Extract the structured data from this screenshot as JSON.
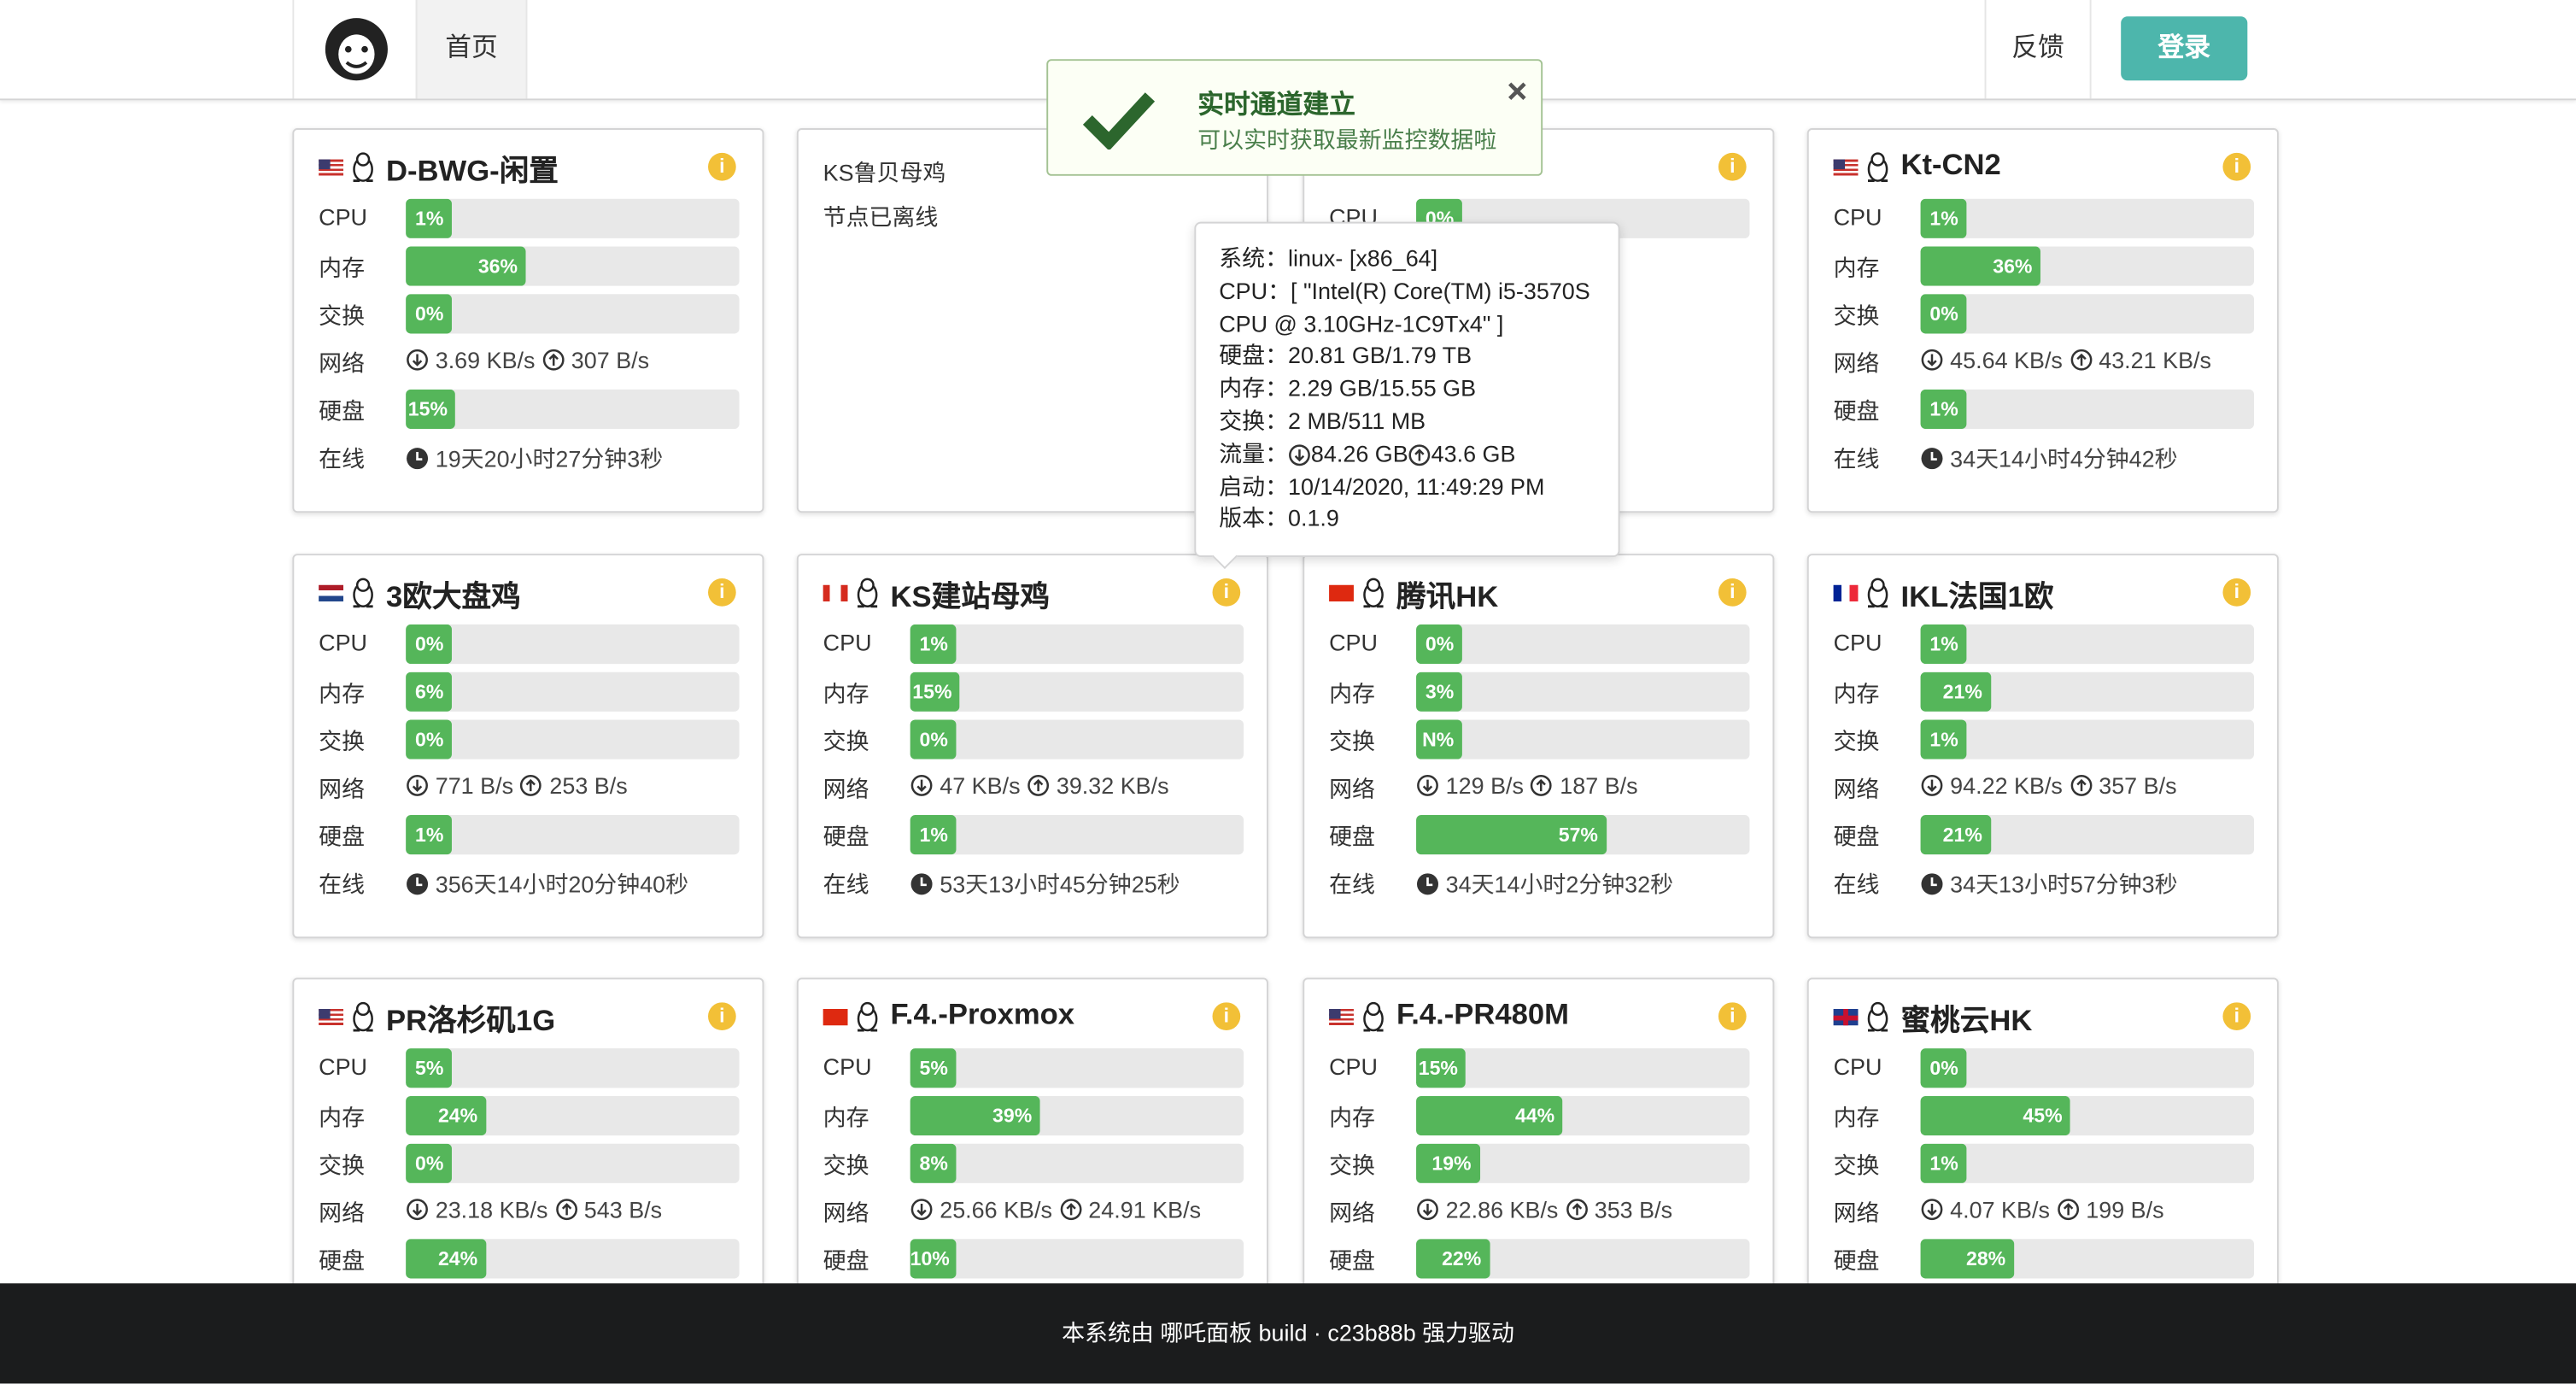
{
  "nav": {
    "home": "首页",
    "feedback": "反馈",
    "login": "登录"
  },
  "toast": {
    "title": "实时通道建立",
    "message": "可以实时获取最新监控数据啦"
  },
  "tooltip": {
    "lines": [
      "系统：linux- [x86_64]",
      "CPU：[ \"Intel(R) Core(TM) i5-3570S CPU @ 3.10GHz-1C9Tx4\" ]",
      "硬盘：20.81 GB/1.79 TB",
      "内存：2.29 GB/15.55 GB",
      "交换：2 MB/511 MB"
    ],
    "traffic": {
      "label": "流量：",
      "down": "84.26 GB",
      "up": "43.6 GB"
    },
    "tail": [
      "启动：10/14/2020, 11:49:29 PM",
      "版本：0.1.9"
    ]
  },
  "labels": {
    "cpu": "CPU",
    "mem": "内存",
    "swap": "交换",
    "net": "网络",
    "disk": "硬盘",
    "uptime": "在线"
  },
  "cards": [
    {
      "name": "D-BWG-闲置",
      "flag": "us",
      "cpu": "1%",
      "mem": "36%",
      "swap": "0%",
      "net": {
        "down": "3.69 KB/s",
        "up": "307 B/s"
      },
      "disk": "15%",
      "uptime": "19天20小时27分钟3秒"
    },
    {
      "name": "KS鲁贝母鸡",
      "offline": "节点已离线"
    },
    {
      "cpu": "0%"
    },
    {
      "name": "Kt-CN2",
      "flag": "us",
      "cpu": "1%",
      "mem": "36%",
      "swap": "0%",
      "net": {
        "down": "45.64 KB/s",
        "up": "43.21 KB/s"
      },
      "disk": "1%",
      "uptime": "34天14小时4分钟42秒"
    },
    {
      "name": "3欧大盘鸡",
      "flag": "nl",
      "cpu": "0%",
      "mem": "6%",
      "swap": "0%",
      "net": {
        "down": "771 B/s",
        "up": "253 B/s"
      },
      "disk": "1%",
      "uptime": "356天14小时20分钟40秒"
    },
    {
      "name": "KS建站母鸡",
      "flag": "ca",
      "cpu": "1%",
      "mem": "15%",
      "swap": "0%",
      "net": {
        "down": "47 KB/s",
        "up": "39.32 KB/s"
      },
      "disk": "1%",
      "uptime": "53天13小时45分钟25秒"
    },
    {
      "name": "腾讯HK",
      "flag": "hk",
      "cpu": "0%",
      "mem": "3%",
      "swap": "N%",
      "net": {
        "down": "129 B/s",
        "up": "187 B/s"
      },
      "disk": "57%",
      "uptime": "34天14小时2分钟32秒"
    },
    {
      "name": "IKL法国1欧",
      "flag": "fr",
      "cpu": "1%",
      "mem": "21%",
      "swap": "1%",
      "net": {
        "down": "94.22 KB/s",
        "up": "357 B/s"
      },
      "disk": "21%",
      "uptime": "34天13小时57分钟3秒"
    },
    {
      "name": "PR洛杉矶1G",
      "flag": "us",
      "cpu": "5%",
      "mem": "24%",
      "swap": "0%",
      "net": {
        "down": "23.18 KB/s",
        "up": "543 B/s"
      },
      "disk": "24%"
    },
    {
      "name": "F.4.-Proxmox",
      "flag": "cn",
      "cpu": "5%",
      "mem": "39%",
      "swap": "8%",
      "net": {
        "down": "25.66 KB/s",
        "up": "24.91 KB/s"
      },
      "disk": "10%"
    },
    {
      "name": "F.4.-PR480M",
      "flag": "us",
      "cpu": "15%",
      "mem": "44%",
      "swap": "19%",
      "net": {
        "down": "22.86 KB/s",
        "up": "353 B/s"
      },
      "disk": "22%"
    },
    {
      "name": "蜜桃云HK",
      "flag": "gb",
      "cpu": "0%",
      "mem": "45%",
      "swap": "1%",
      "net": {
        "down": "4.07 KB/s",
        "up": "199 B/s"
      },
      "disk": "28%"
    }
  ],
  "footer": "本系统由 哪吒面板 build · c23b88b 强力驱动"
}
